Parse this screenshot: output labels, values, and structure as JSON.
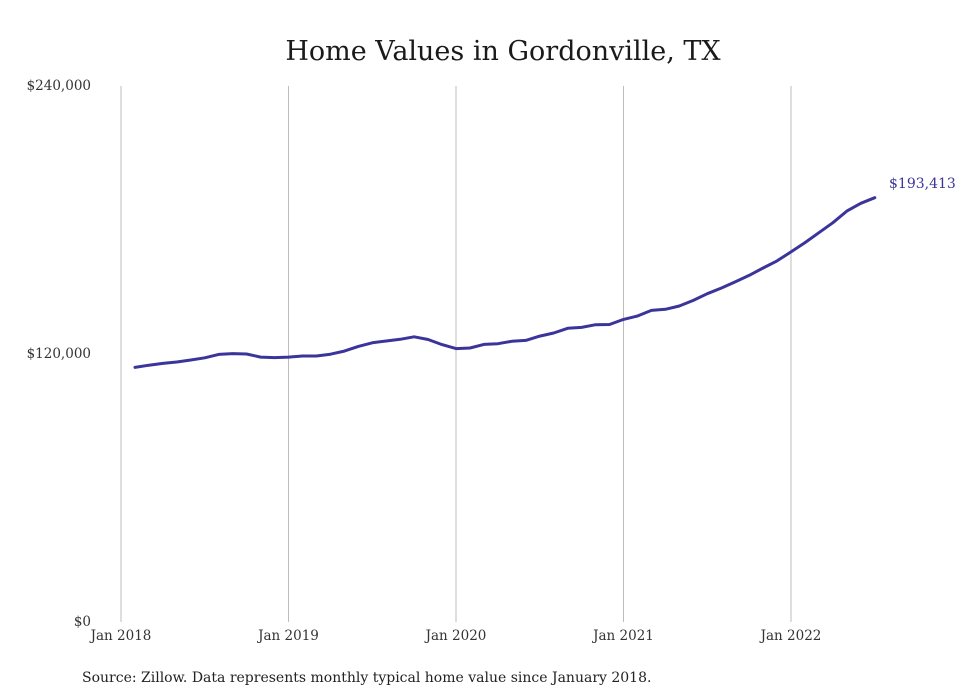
{
  "chart_data": {
    "type": "line",
    "title": "Home Values in Gordonville, TX",
    "xlabel": "",
    "ylabel": "",
    "ylim": [
      0,
      240000
    ],
    "y_ticks": [
      {
        "value": 0,
        "label": "$0"
      },
      {
        "value": 120000,
        "label": "$120,000"
      },
      {
        "value": 240000,
        "label": "$240,000"
      }
    ],
    "x_ticks": [
      "Jan 2018",
      "Jan 2019",
      "Jan 2020",
      "Jan 2021",
      "Jan 2022"
    ],
    "grid": "vertical",
    "series": [
      {
        "color": "#3b349a",
        "x": [
          "2018-02",
          "2018-03",
          "2018-04",
          "2018-05",
          "2018-06",
          "2018-07",
          "2018-08",
          "2018-09",
          "2018-10",
          "2018-11",
          "2018-12",
          "2019-01",
          "2019-02",
          "2019-03",
          "2019-04",
          "2019-05",
          "2019-06",
          "2019-07",
          "2019-08",
          "2019-09",
          "2019-10",
          "2019-11",
          "2019-12",
          "2020-01",
          "2020-02",
          "2020-03",
          "2020-04",
          "2020-05",
          "2020-06",
          "2020-07",
          "2020-08",
          "2020-09",
          "2020-10",
          "2020-11",
          "2020-12",
          "2021-01",
          "2021-02",
          "2021-03",
          "2021-04",
          "2021-05",
          "2021-06",
          "2021-07",
          "2021-08",
          "2021-09",
          "2021-10",
          "2021-11",
          "2021-12",
          "2022-01",
          "2022-02",
          "2022-03",
          "2022-04",
          "2022-05",
          "2022-06",
          "2022-07"
        ],
        "values": [
          114000,
          115000,
          115800,
          116400,
          117300,
          118300,
          119800,
          120200,
          120000,
          118600,
          118400,
          118600,
          119100,
          119100,
          119900,
          121300,
          123400,
          125000,
          125800,
          126600,
          127700,
          126500,
          124200,
          122400,
          122700,
          124300,
          124600,
          125700,
          126100,
          128000,
          129400,
          131500,
          131900,
          133100,
          133200,
          135500,
          137000,
          139500,
          140000,
          141500,
          144000,
          147000,
          149500,
          152300,
          155200,
          158500,
          161700,
          165700,
          169900,
          174300,
          178800,
          184000,
          187500,
          190000
        ]
      }
    ],
    "end_label": "$193,413"
  },
  "source": "Source: Zillow. Data represents monthly typical home value since January 2018."
}
